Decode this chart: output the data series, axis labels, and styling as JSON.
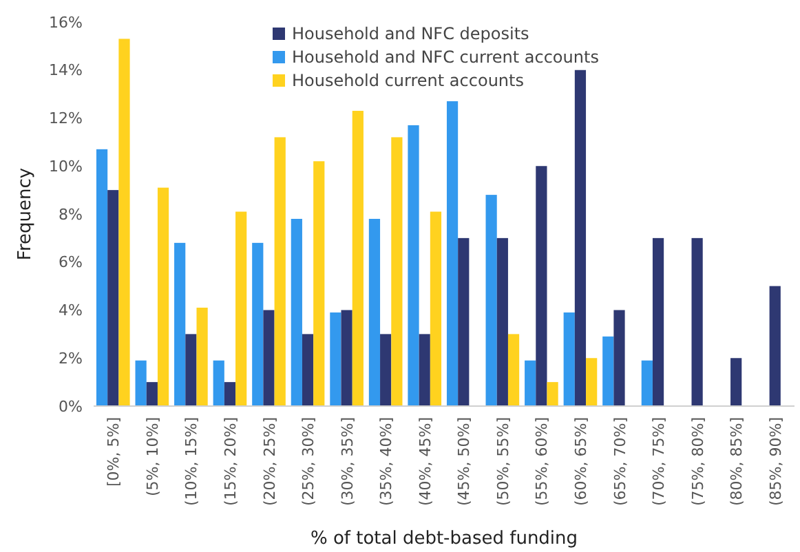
{
  "chart_data": {
    "type": "bar",
    "xlabel": "% of total debt-based funding",
    "ylabel": "Frequency",
    "categories": [
      "[0%, 5%]",
      "(5%, 10%]",
      "(10%, 15%]",
      "(15%, 20%]",
      "(20%, 25%]",
      "(25%, 30%]",
      "(30%, 35%]",
      "(35%, 40%]",
      "(40%, 45%]",
      "(45%, 50%]",
      "(50%, 55%]",
      "(55%, 60%]",
      "(60%, 65%]",
      "(65%, 70%]",
      "(70%, 75%]",
      "(75%, 80%]",
      "(80%, 85%]",
      "(85%, 90%]"
    ],
    "series": [
      {
        "name": "Household and NFC current accounts",
        "color": "#3399ee",
        "values": [
          10.7,
          1.9,
          6.8,
          1.9,
          6.8,
          7.8,
          3.9,
          7.8,
          11.7,
          12.7,
          8.8,
          1.9,
          3.9,
          2.9,
          1.9,
          null,
          null,
          null
        ]
      },
      {
        "name": "Household and NFC deposits",
        "color": "#2e3872",
        "values": [
          9,
          1,
          3,
          1,
          4,
          3,
          4,
          3,
          3,
          7,
          7,
          10,
          14,
          4,
          7,
          7,
          2,
          5
        ]
      },
      {
        "name": "Household current accounts",
        "color": "#ffd21f",
        "values": [
          15.3,
          9.1,
          4.1,
          8.1,
          11.2,
          10.2,
          12.3,
          11.2,
          8.1,
          null,
          3,
          1,
          2,
          null,
          null,
          null,
          null,
          null
        ]
      }
    ],
    "ylim": [
      0,
      16
    ],
    "yticks": [
      {
        "value": 0,
        "label": "0%"
      },
      {
        "value": 2,
        "label": "2%"
      },
      {
        "value": 4,
        "label": "4%"
      },
      {
        "value": 6,
        "label": "6%"
      },
      {
        "value": 8,
        "label": "8%"
      },
      {
        "value": 10,
        "label": "10%"
      },
      {
        "value": 12,
        "label": "12%"
      },
      {
        "value": 14,
        "label": "14%"
      },
      {
        "value": 16,
        "label": "16%"
      }
    ],
    "grid": false,
    "legend": "top"
  }
}
